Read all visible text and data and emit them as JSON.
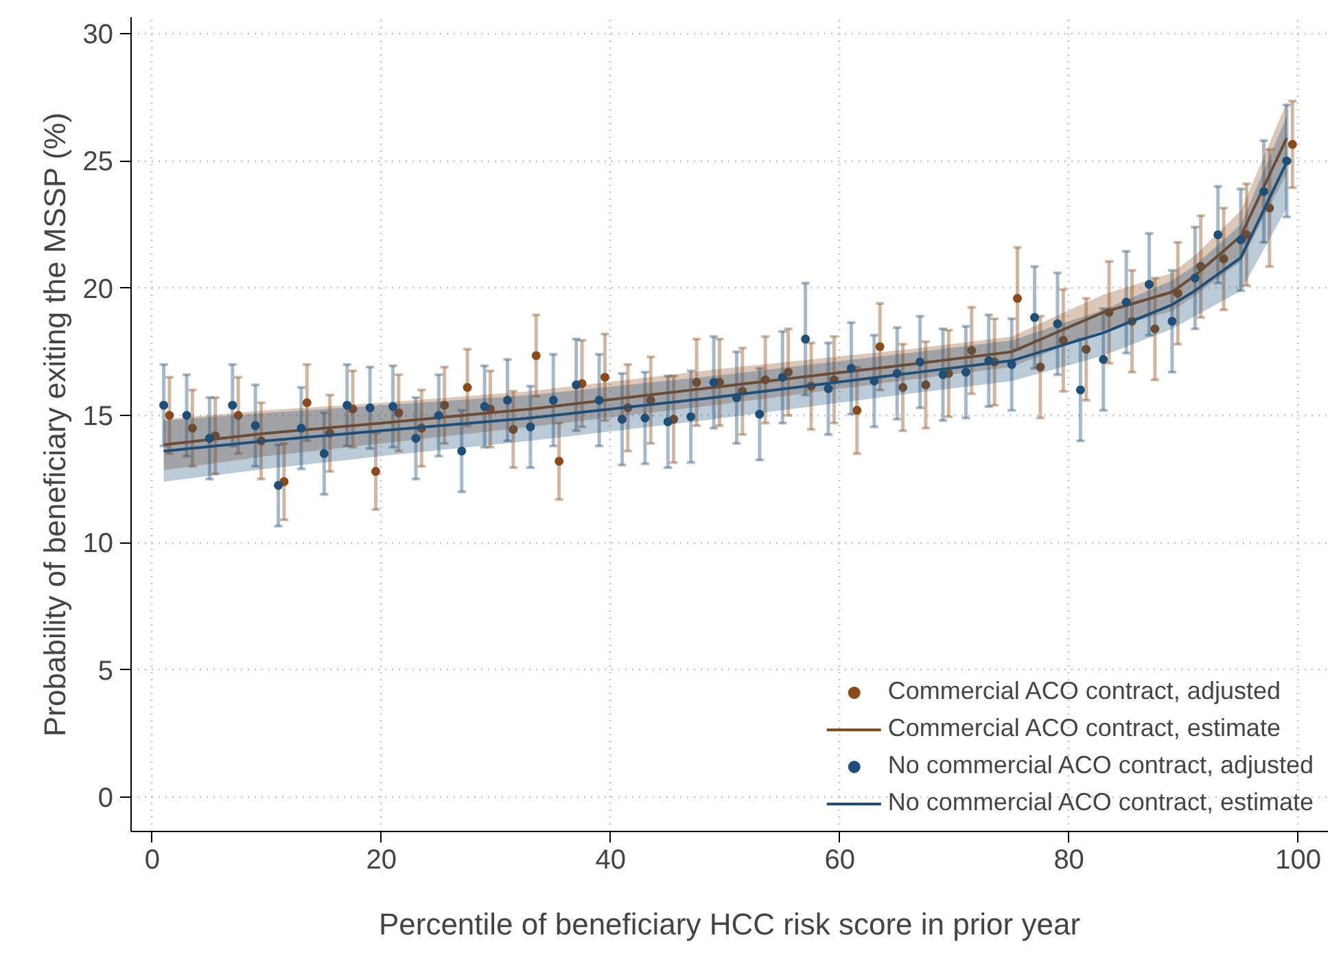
{
  "chart_data": {
    "type": "scatter",
    "xlabel": "Percentile of beneficiary HCC risk score in prior year",
    "ylabel": "Probability of beneficiary exiting the MSSP (%)",
    "xlim": [
      -1.85,
      102.6
    ],
    "ylim": [
      -1.35,
      30.65
    ],
    "xticks": [
      0,
      20,
      40,
      60,
      80,
      100
    ],
    "yticks": [
      0,
      5,
      10,
      15,
      20,
      25,
      30
    ],
    "grid": true,
    "legend": "bottom right",
    "marker": "circle",
    "series": [
      {
        "name": "Commercial ACO contract, adjusted",
        "color": "#8b4a17",
        "x": [
          1.5,
          3.5,
          5.5,
          7.5,
          9.5,
          11.5,
          13.5,
          15.5,
          17.5,
          19.5,
          21.5,
          23.5,
          25.5,
          27.5,
          29.5,
          31.5,
          33.5,
          35.5,
          37.5,
          39.5,
          41.5,
          43.5,
          45.5,
          47.5,
          49.5,
          51.5,
          53.5,
          55.5,
          57.5,
          59.5,
          61.5,
          63.5,
          65.5,
          67.5,
          69.5,
          71.5,
          73.5,
          75.5,
          77.5,
          79.5,
          81.5,
          83.5,
          85.5,
          87.5,
          89.5,
          91.5,
          93.5,
          95.5,
          97.5,
          99.5
        ],
        "values": [
          15.0,
          14.5,
          14.2,
          15.0,
          14.0,
          12.4,
          15.5,
          14.3,
          15.25,
          12.8,
          15.1,
          14.5,
          15.4,
          16.1,
          15.25,
          14.45,
          17.35,
          13.2,
          16.25,
          16.5,
          15.3,
          15.6,
          14.85,
          16.3,
          16.3,
          15.95,
          16.4,
          16.7,
          16.15,
          16.4,
          15.2,
          17.7,
          16.1,
          16.2,
          16.65,
          17.55,
          17.1,
          19.6,
          16.9,
          17.95,
          17.6,
          19.05,
          18.7,
          18.4,
          19.8,
          20.85,
          21.15,
          22.1,
          23.15,
          25.65
        ],
        "errors": [
          1.5,
          1.5,
          1.5,
          1.5,
          1.5,
          1.5,
          1.5,
          1.5,
          1.5,
          1.5,
          1.5,
          1.5,
          1.5,
          1.5,
          1.5,
          1.5,
          1.6,
          1.5,
          1.7,
          1.7,
          1.7,
          1.7,
          1.7,
          1.7,
          1.7,
          1.7,
          1.7,
          1.7,
          1.7,
          1.7,
          1.7,
          1.7,
          1.7,
          1.7,
          1.7,
          1.7,
          1.7,
          2.0,
          2.0,
          2.0,
          2.0,
          2.0,
          2.0,
          2.0,
          2.0,
          2.0,
          2.0,
          2.0,
          2.3,
          1.7
        ]
      },
      {
        "name": "Commercial ACO contract, estimate",
        "type": "line",
        "marker": "none",
        "color": "#8b4a17",
        "x": [
          1,
          10,
          20,
          33,
          49,
          66,
          75,
          83,
          89,
          91,
          95,
          99
        ],
        "values": [
          13.85,
          14.3,
          14.7,
          15.25,
          16.1,
          17.0,
          17.5,
          19.05,
          19.85,
          20.5,
          22.05,
          25.9
        ],
        "lower": [
          12.85,
          13.4,
          13.9,
          14.55,
          15.4,
          16.4,
          16.9,
          18.35,
          19.1,
          19.7,
          21.05,
          24.5
        ],
        "upper": [
          14.85,
          15.2,
          15.5,
          15.95,
          16.8,
          17.6,
          18.1,
          19.75,
          20.6,
          21.3,
          23.05,
          27.3
        ]
      },
      {
        "name": "No commercial ACO contract, adjusted",
        "color": "#1d4f79",
        "x": [
          1,
          3,
          5,
          7,
          9,
          11,
          13,
          15,
          17,
          19,
          21,
          23,
          25,
          27,
          29,
          31,
          33,
          35,
          37,
          39,
          41,
          43,
          45,
          47,
          49,
          51,
          53,
          55,
          57,
          59,
          61,
          63,
          65,
          67,
          69,
          71,
          73,
          75,
          77,
          79,
          81,
          83,
          85,
          87,
          89,
          91,
          93,
          95,
          97,
          99
        ],
        "values": [
          15.4,
          15.0,
          14.1,
          15.4,
          14.6,
          12.25,
          14.5,
          13.5,
          15.4,
          15.3,
          15.35,
          14.1,
          15.0,
          13.6,
          15.35,
          15.6,
          14.55,
          15.6,
          16.2,
          15.6,
          14.85,
          14.9,
          14.75,
          14.95,
          16.3,
          15.7,
          15.05,
          16.5,
          18.0,
          16.05,
          16.85,
          16.35,
          16.65,
          17.1,
          16.6,
          16.7,
          17.15,
          17.0,
          18.85,
          18.6,
          16.0,
          17.2,
          19.45,
          20.15,
          18.7,
          20.4,
          22.1,
          21.9,
          23.8,
          25.0
        ],
        "errors": [
          1.6,
          1.6,
          1.6,
          1.6,
          1.6,
          1.6,
          1.6,
          1.6,
          1.6,
          1.6,
          1.6,
          1.6,
          1.6,
          1.6,
          1.6,
          1.6,
          1.6,
          1.8,
          1.8,
          1.8,
          1.8,
          1.8,
          1.8,
          1.8,
          1.8,
          1.8,
          1.8,
          1.8,
          2.2,
          1.8,
          1.8,
          1.8,
          1.8,
          1.8,
          1.8,
          1.8,
          1.8,
          1.8,
          2.0,
          2.0,
          2.0,
          2.0,
          2.0,
          2.0,
          2.0,
          2.0,
          1.9,
          2.0,
          2.0,
          2.2
        ]
      },
      {
        "name": "No commercial ACO contract, estimate",
        "type": "line",
        "marker": "none",
        "color": "#1d4f79",
        "x": [
          1,
          10,
          20,
          33,
          49,
          66,
          75,
          83,
          89,
          91,
          95,
          99
        ],
        "values": [
          13.6,
          14.0,
          14.4,
          14.9,
          15.7,
          16.65,
          17.15,
          18.25,
          19.35,
          19.9,
          21.2,
          24.95
        ],
        "lower": [
          12.4,
          12.9,
          13.4,
          14.0,
          14.85,
          15.85,
          16.35,
          17.35,
          18.4,
          18.9,
          19.9,
          23.15
        ],
        "upper": [
          14.8,
          15.1,
          15.4,
          15.8,
          16.55,
          17.45,
          17.95,
          19.15,
          20.3,
          20.9,
          22.5,
          26.75
        ]
      }
    ]
  }
}
